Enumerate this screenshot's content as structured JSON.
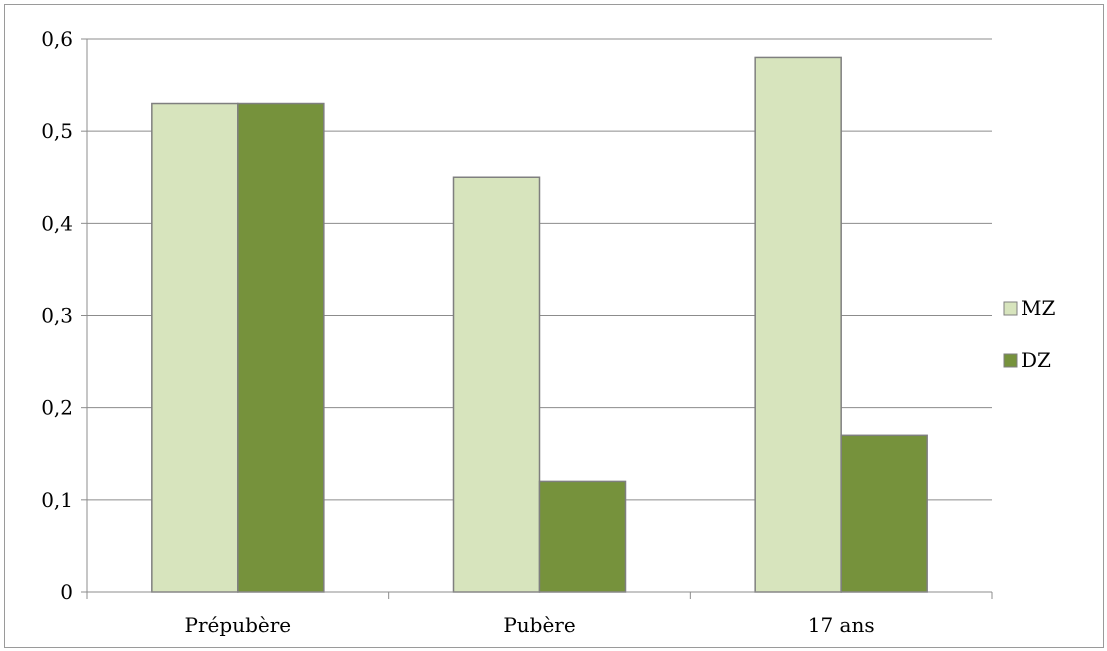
{
  "chart_data": {
    "type": "bar",
    "title": "",
    "xlabel": "",
    "ylabel": "",
    "categories": [
      "Prépubère",
      "Pubère",
      "17 ans"
    ],
    "series": [
      {
        "name": "MZ",
        "values": [
          0.53,
          0.45,
          0.58
        ],
        "color": "#d7e4bd"
      },
      {
        "name": "DZ",
        "values": [
          0.53,
          0.12,
          0.17
        ],
        "color": "#76923c"
      }
    ],
    "ylim": [
      0,
      0.6
    ],
    "yticks": [
      {
        "value": 0,
        "label": "0"
      },
      {
        "value": 0.1,
        "label": "0,1"
      },
      {
        "value": 0.2,
        "label": "0,2"
      },
      {
        "value": 0.3,
        "label": "0,3"
      },
      {
        "value": 0.4,
        "label": "0,4"
      },
      {
        "value": 0.5,
        "label": "0,5"
      },
      {
        "value": 0.6,
        "label": "0,6"
      }
    ],
    "grid": true,
    "legend_position": "right",
    "colors": {
      "grid": "#8c8c8c",
      "bar_border": "#7f7f7f",
      "frame": "#9a9a9a"
    }
  }
}
